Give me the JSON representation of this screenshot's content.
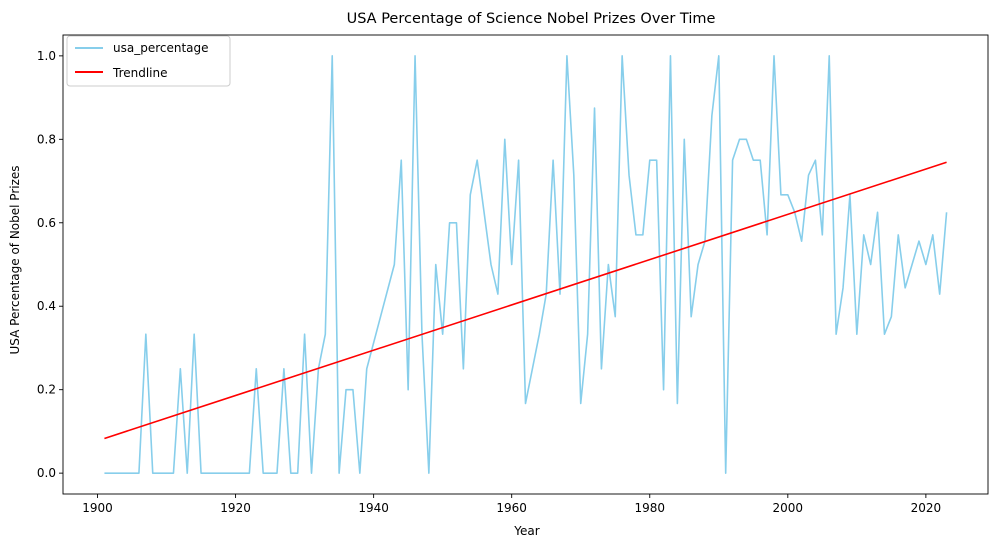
{
  "chart_data": {
    "type": "line",
    "title": "USA Percentage of Science Nobel Prizes Over Time",
    "xlabel": "Year",
    "ylabel": "USA Percentage of Nobel Prizes",
    "xlim": [
      1895,
      2029
    ],
    "ylim": [
      -0.05,
      1.05
    ],
    "xticks": [
      1900,
      1920,
      1940,
      1960,
      1980,
      2000,
      2020
    ],
    "yticks": [
      0.0,
      0.2,
      0.4,
      0.6,
      0.8,
      1.0
    ],
    "ytick_labels": [
      "0.0",
      "0.2",
      "0.4",
      "0.6",
      "0.8",
      "1.0"
    ],
    "grid": false,
    "legend_position": "top-left",
    "series": [
      {
        "name": "usa_percentage",
        "color": "#87ceeb",
        "x": [
          1901,
          1902,
          1903,
          1904,
          1905,
          1906,
          1907,
          1908,
          1909,
          1910,
          1911,
          1912,
          1913,
          1914,
          1915,
          1916,
          1917,
          1919,
          1920,
          1921,
          1922,
          1923,
          1924,
          1925,
          1926,
          1927,
          1928,
          1929,
          1930,
          1931,
          1932,
          1933,
          1934,
          1935,
          1936,
          1937,
          1938,
          1939,
          1943,
          1944,
          1945,
          1946,
          1947,
          1948,
          1949,
          1950,
          1951,
          1952,
          1953,
          1954,
          1955,
          1956,
          1957,
          1958,
          1959,
          1960,
          1961,
          1962,
          1963,
          1964,
          1965,
          1966,
          1967,
          1968,
          1969,
          1970,
          1971,
          1972,
          1973,
          1974,
          1975,
          1976,
          1977,
          1978,
          1979,
          1980,
          1981,
          1982,
          1983,
          1984,
          1985,
          1986,
          1987,
          1988,
          1989,
          1990,
          1991,
          1992,
          1993,
          1994,
          1995,
          1996,
          1997,
          1998,
          1999,
          2000,
          2001,
          2002,
          2003,
          2004,
          2005,
          2006,
          2007,
          2008,
          2009,
          2010,
          2011,
          2012,
          2013,
          2014,
          2015,
          2016,
          2017,
          2018,
          2019,
          2020,
          2021,
          2022,
          2023
        ],
        "values": [
          0,
          0,
          0,
          0,
          0,
          0,
          0.333,
          0,
          0,
          0,
          0,
          0.25,
          0,
          0.333,
          0,
          0,
          0,
          0,
          0,
          0,
          0,
          0.25,
          0,
          0,
          0,
          0.25,
          0,
          0,
          0.333,
          0,
          0.25,
          0.333,
          1,
          0,
          0.2,
          0.2,
          0,
          0.25,
          0.5,
          0.75,
          0.2,
          1,
          0.333,
          0,
          0.5,
          0.333,
          0.6,
          0.6,
          0.25,
          0.667,
          0.75,
          0.625,
          0.5,
          0.429,
          0.8,
          0.5,
          0.75,
          0.167,
          0.25,
          0.333,
          0.429,
          0.75,
          0.429,
          1,
          0.714,
          0.167,
          0.333,
          0.875,
          0.25,
          0.5,
          0.375,
          1,
          0.714,
          0.571,
          0.571,
          0.75,
          0.75,
          0.2,
          1,
          0.167,
          0.8,
          0.375,
          0.5,
          0.556,
          0.857,
          1,
          0,
          0.75,
          0.8,
          0.8,
          0.75,
          0.75,
          0.571,
          1,
          0.667,
          0.667,
          0.625,
          0.556,
          0.714,
          0.75,
          0.571,
          1,
          0.333,
          0.444,
          0.667,
          0.333,
          0.571,
          0.5,
          0.625,
          0.333,
          0.375,
          0.571,
          0.444,
          0.5,
          0.556,
          0.5,
          0.571,
          0.429,
          0.625
        ]
      },
      {
        "name": "Trendline",
        "color": "#ff0000",
        "x": [
          1901,
          2023
        ],
        "values": [
          0.083,
          0.745
        ]
      }
    ]
  }
}
